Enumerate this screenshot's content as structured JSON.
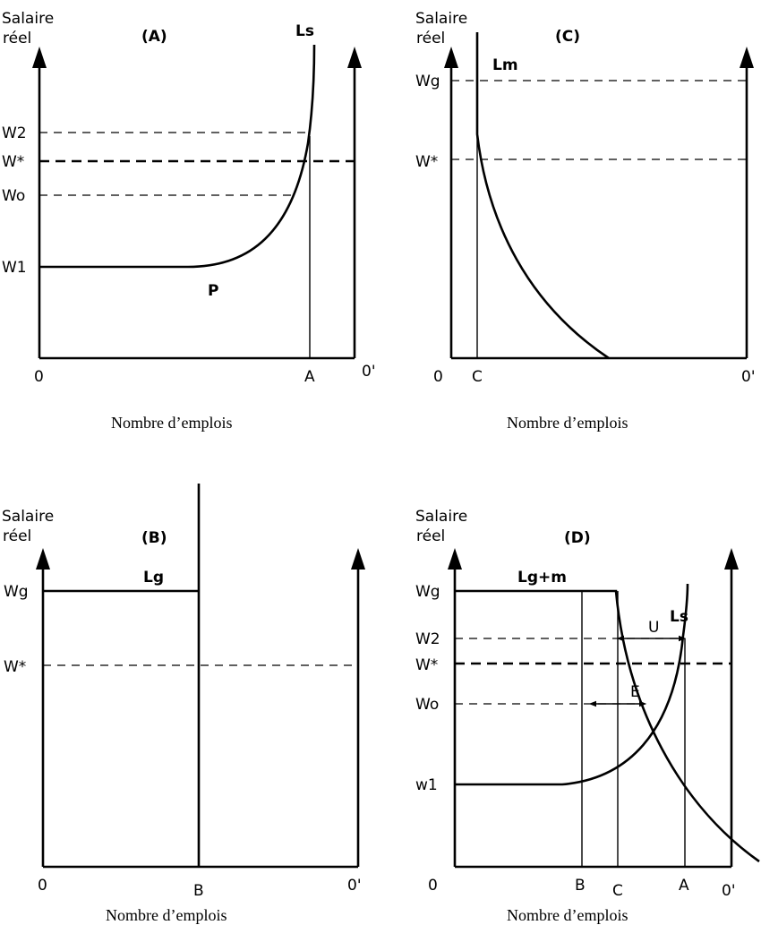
{
  "panels": {
    "A": {
      "title": "(A)",
      "y_axis_label": [
        "Salaire",
        "réel"
      ],
      "curve_labels": {
        "ls": "Ls",
        "p": "P"
      },
      "y_ticks": {
        "w2": "W2",
        "wstar": "W*",
        "wo": "Wo",
        "w1": "W1"
      },
      "x_ticks": {
        "origin": "0",
        "a": "A",
        "origin_right": "0'"
      },
      "caption": "Nombre d’emplois"
    },
    "C": {
      "title": "(C)",
      "y_axis_label": [
        "Salaire",
        "réel"
      ],
      "curve_labels": {
        "lm": "Lm"
      },
      "y_ticks": {
        "wg": "Wg",
        "wstar": "W*"
      },
      "x_ticks": {
        "origin": "0",
        "c": "C",
        "origin_right": "0'"
      },
      "caption": "Nombre d’emplois"
    },
    "B": {
      "title": "(B)",
      "y_axis_label": [
        "Salaire",
        "réel"
      ],
      "curve_labels": {
        "lg": "Lg"
      },
      "y_ticks": {
        "wg": "Wg",
        "wstar": "W*"
      },
      "x_ticks": {
        "origin": "0",
        "b": "B",
        "origin_right": "0'"
      },
      "caption": "Nombre d’emplois"
    },
    "D": {
      "title": "(D)",
      "y_axis_label": [
        "Salaire",
        "réel"
      ],
      "curve_labels": {
        "lgm": "Lg+m",
        "ls": "Ls",
        "u": "U",
        "e": "E"
      },
      "y_ticks": {
        "wg": "Wg",
        "w2": "W2",
        "wstar": "W*",
        "wo": "Wo",
        "w1": "w1"
      },
      "x_ticks": {
        "origin": "0",
        "b": "B",
        "c": "C",
        "a": "A",
        "origin_right": "0'"
      },
      "caption": "Nombre d’emplois"
    }
  }
}
